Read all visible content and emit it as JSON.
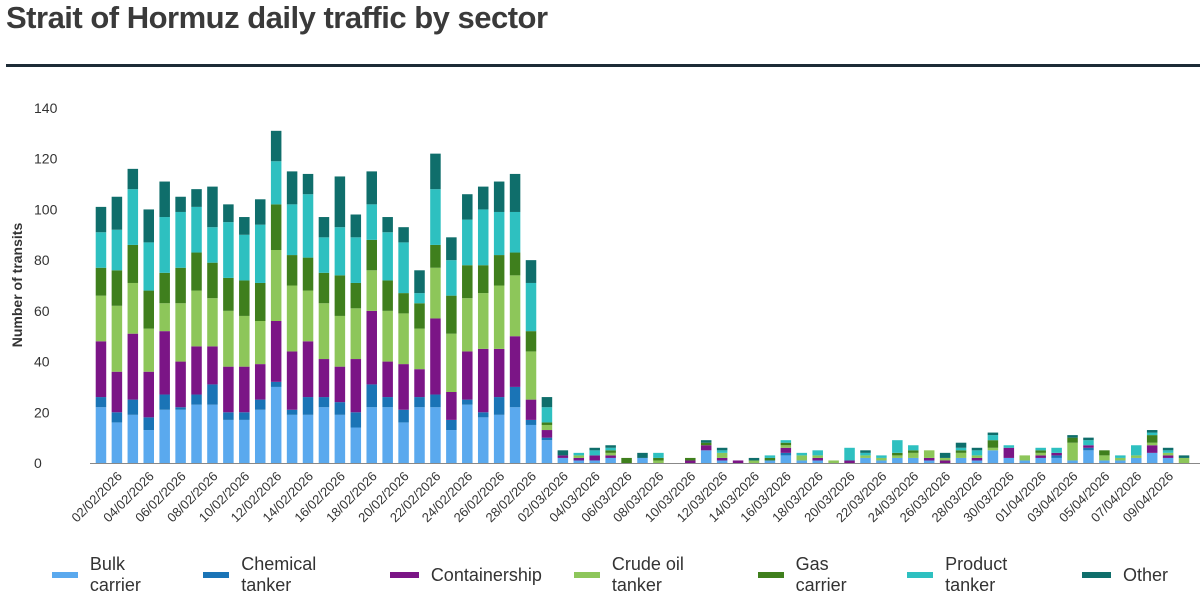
{
  "title": "Strait of Hormuz daily traffic by sector",
  "chart_data": {
    "type": "bar",
    "stacked": true,
    "title": "Strait of Hormuz daily traffic by sector",
    "xlabel": "",
    "ylabel": "Number of transits",
    "ylim": [
      0,
      140
    ],
    "yticks": [
      0,
      20,
      40,
      60,
      80,
      100,
      120,
      140
    ],
    "grid": false,
    "legend": "bottom",
    "categories": [
      "01/02/2026",
      "02/02/2026",
      "03/02/2026",
      "04/02/2026",
      "05/02/2026",
      "06/02/2026",
      "07/02/2026",
      "08/02/2026",
      "09/02/2026",
      "10/02/2026",
      "11/02/2026",
      "12/02/2026",
      "13/02/2026",
      "14/02/2026",
      "15/02/2026",
      "16/02/2026",
      "17/02/2026",
      "18/02/2026",
      "19/02/2026",
      "20/02/2026",
      "21/02/2026",
      "22/02/2026",
      "23/02/2026",
      "24/02/2026",
      "25/02/2026",
      "26/02/2026",
      "27/02/2026",
      "28/02/2026",
      "01/03/2026",
      "02/03/2026",
      "03/03/2026",
      "04/03/2026",
      "05/03/2026",
      "06/03/2026",
      "07/03/2026",
      "08/03/2026",
      "09/03/2026",
      "10/03/2026",
      "11/03/2026",
      "12/03/2026",
      "13/03/2026",
      "14/03/2026",
      "15/03/2026",
      "16/03/2026",
      "17/03/2026",
      "18/03/2026",
      "19/03/2026",
      "20/03/2026",
      "21/03/2026",
      "22/03/2026",
      "23/03/2026",
      "24/03/2026",
      "25/03/2026",
      "26/03/2026",
      "27/03/2026",
      "28/03/2026",
      "29/03/2026",
      "30/03/2026",
      "31/03/2026",
      "01/04/2026",
      "02/04/2026",
      "03/04/2026",
      "04/04/2026",
      "05/04/2026",
      "06/04/2026",
      "07/04/2026",
      "08/04/2026",
      "09/04/2026",
      "10/04/2026"
    ],
    "tick_labels": [
      "02/02/2026",
      "04/02/2026",
      "06/02/2026",
      "08/02/2026",
      "10/02/2026",
      "12/02/2026",
      "14/02/2026",
      "16/02/2026",
      "18/02/2026",
      "20/02/2026",
      "22/02/2026",
      "24/02/2026",
      "26/02/2026",
      "28/02/2026",
      "02/03/2026",
      "04/03/2026",
      "06/03/2026",
      "08/03/2026",
      "10/03/2026",
      "12/03/2026",
      "14/03/2026",
      "16/03/2026",
      "18/03/2026",
      "20/03/2026",
      "22/03/2026",
      "24/03/2026",
      "26/03/2026",
      "28/03/2026",
      "30/03/2026",
      "01/04/2026",
      "03/04/2026",
      "05/04/2026",
      "07/04/2026",
      "09/04/2026"
    ],
    "series": [
      {
        "name": "Bulk carrier",
        "color": "#5aa9ee",
        "values": [
          22,
          16,
          19,
          13,
          21,
          21,
          23,
          23,
          17,
          17,
          21,
          30,
          19,
          19,
          22,
          19,
          14,
          22,
          22,
          16,
          22,
          22,
          13,
          23,
          18,
          19,
          22,
          15,
          9,
          2,
          1,
          1,
          2,
          0,
          2,
          0,
          0,
          0,
          5,
          1,
          0,
          0,
          1,
          3,
          1,
          1,
          0,
          0,
          2,
          1,
          2,
          2,
          1,
          0,
          2,
          1,
          5,
          2,
          1,
          2,
          2,
          1,
          5,
          1,
          1,
          2,
          4,
          2,
          0
        ]
      },
      {
        "name": "Chemical tanker",
        "color": "#1a74b6",
        "values": [
          4,
          4,
          6,
          5,
          6,
          1,
          4,
          8,
          3,
          3,
          4,
          2,
          2,
          7,
          4,
          5,
          6,
          9,
          4,
          5,
          4,
          5,
          4,
          2,
          2,
          7,
          8,
          2,
          1,
          0,
          0,
          0,
          0,
          0,
          0,
          0,
          0,
          0,
          0,
          0,
          0,
          0,
          0,
          1,
          0,
          0,
          0,
          0,
          0,
          0,
          0,
          0,
          0,
          0,
          0,
          0,
          0,
          0,
          0,
          0,
          1,
          0,
          1,
          0,
          0,
          0,
          0,
          0,
          0
        ]
      },
      {
        "name": "Containership",
        "color": "#7b1586",
        "values": [
          22,
          16,
          26,
          18,
          25,
          18,
          19,
          15,
          18,
          18,
          14,
          24,
          23,
          22,
          15,
          14,
          21,
          29,
          14,
          18,
          11,
          30,
          11,
          19,
          25,
          19,
          20,
          8,
          3,
          1,
          1,
          2,
          1,
          0,
          0,
          0,
          0,
          1,
          2,
          1,
          1,
          0,
          0,
          2,
          0,
          1,
          0,
          1,
          0,
          0,
          0,
          0,
          1,
          1,
          0,
          1,
          0,
          4,
          0,
          1,
          1,
          0,
          1,
          0,
          0,
          0,
          3,
          1,
          0
        ]
      },
      {
        "name": "Crude oil tanker",
        "color": "#8dc65a",
        "values": [
          18,
          26,
          20,
          17,
          11,
          23,
          22,
          19,
          22,
          20,
          17,
          28,
          26,
          20,
          22,
          20,
          20,
          16,
          20,
          20,
          16,
          20,
          23,
          21,
          22,
          25,
          24,
          19,
          2,
          0,
          1,
          0,
          1,
          0,
          0,
          1,
          0,
          0,
          0,
          2,
          0,
          1,
          0,
          1,
          2,
          1,
          1,
          0,
          1,
          1,
          1,
          2,
          3,
          1,
          2,
          1,
          1,
          0,
          2,
          1,
          0,
          7,
          0,
          2,
          1,
          1,
          1,
          1,
          2
        ]
      },
      {
        "name": "Gas carrier",
        "color": "#3f7f1d",
        "values": [
          11,
          14,
          15,
          15,
          12,
          14,
          15,
          14,
          13,
          14,
          15,
          18,
          12,
          13,
          12,
          16,
          10,
          12,
          12,
          8,
          10,
          9,
          15,
          13,
          11,
          12,
          9,
          8,
          1,
          0,
          0,
          0,
          1,
          2,
          0,
          1,
          0,
          1,
          1,
          0,
          0,
          0,
          1,
          1,
          0,
          0,
          0,
          0,
          0,
          0,
          1,
          1,
          0,
          0,
          1,
          0,
          3,
          0,
          0,
          1,
          0,
          2,
          0,
          2,
          0,
          0,
          3,
          0,
          0
        ]
      },
      {
        "name": "Product tanker",
        "color": "#2ec0c0",
        "values": [
          14,
          16,
          22,
          19,
          22,
          22,
          18,
          14,
          22,
          18,
          23,
          17,
          20,
          25,
          14,
          19,
          18,
          14,
          19,
          20,
          4,
          22,
          14,
          18,
          22,
          17,
          16,
          19,
          6,
          0,
          1,
          2,
          1,
          0,
          0,
          2,
          0,
          0,
          0,
          1,
          0,
          0,
          1,
          1,
          1,
          2,
          0,
          5,
          1,
          1,
          5,
          2,
          0,
          0,
          1,
          2,
          2,
          1,
          0,
          1,
          2,
          0,
          2,
          0,
          1,
          4,
          1,
          1,
          0
        ]
      },
      {
        "name": "Other",
        "color": "#0f6e6b",
        "values": [
          10,
          13,
          8,
          13,
          14,
          6,
          7,
          16,
          7,
          7,
          10,
          12,
          13,
          8,
          8,
          20,
          9,
          13,
          6,
          6,
          9,
          14,
          9,
          10,
          9,
          12,
          15,
          9,
          4,
          2,
          0,
          1,
          1,
          0,
          2,
          0,
          0,
          0,
          1,
          1,
          0,
          1,
          0,
          0,
          0,
          0,
          0,
          0,
          1,
          0,
          0,
          0,
          0,
          2,
          2,
          1,
          1,
          0,
          0,
          0,
          0,
          1,
          1,
          0,
          0,
          0,
          1,
          1,
          1
        ]
      }
    ]
  }
}
